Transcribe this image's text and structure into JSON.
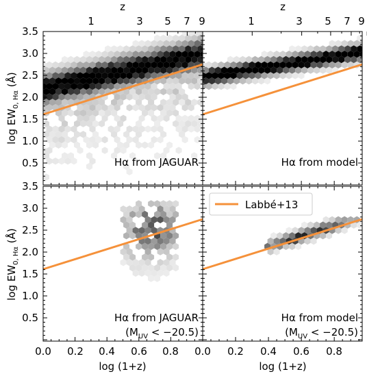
{
  "figure": {
    "top_axis_label": "z",
    "top_ticks": [
      "1",
      "3",
      "5",
      "7",
      "9"
    ],
    "fit_line_color": "#f5913a",
    "legend_label": "Labbé+13",
    "ylabel_main": "log EW",
    "ylabel_sub": "0, Hα",
    "ylabel_unit": " (Å)",
    "xlabel": "log (1+z)",
    "x_tick_labels": [
      "0.0",
      "0.2",
      "0.4",
      "0.6",
      "0.8",
      "0.0",
      "0.2",
      "0.4",
      "0.6",
      "0.8"
    ],
    "y_tick_labels_top": [
      "3.5",
      "3.0",
      "2.5",
      "2.0",
      "1.5",
      "1.0",
      "0.5"
    ],
    "y_tick_labels_bottom": [
      "3.5",
      "3.0",
      "2.5",
      "2.0",
      "1.5",
      "1.0",
      "0.5"
    ]
  },
  "chart_data": [
    {
      "type": "heatmap",
      "panel": "top-left",
      "label": "Hα from JAGUAR",
      "label_line2": "",
      "xlim": [
        0.0,
        1.0
      ],
      "ylim": [
        0.0,
        3.5
      ],
      "reference_line": {
        "name": "Labbé+13",
        "x": [
          0.0,
          1.0
        ],
        "y": [
          1.61,
          2.75
        ]
      },
      "density": {
        "ridge_at_x0": 2.18,
        "ridge_slope": 0.8,
        "scatter": 0.22,
        "lower_tail_to": 0.1
      }
    },
    {
      "type": "heatmap",
      "panel": "top-right",
      "label": "Hα from model",
      "label_line2": "",
      "xlim": [
        0.0,
        0.97
      ],
      "ylim": [
        0.0,
        3.5
      ],
      "reference_line": {
        "name": "Labbé+13",
        "x": [
          0.0,
          0.97
        ],
        "y": [
          1.61,
          2.75
        ]
      },
      "density": {
        "ridge_at_x0": 2.45,
        "ridge_slope": 0.6,
        "scatter": 0.12,
        "lower_tail_to": 2.0
      }
    },
    {
      "type": "heatmap",
      "panel": "bottom-left",
      "label": "Hα from JAGUAR",
      "label_line2": "(M",
      "label_line2_sub": "UV",
      "label_line2_rest": " < −20.5)",
      "xlim": [
        0.0,
        1.0
      ],
      "ylim": [
        0.1,
        3.5
      ],
      "reference_line": {
        "name": "Labbé+13",
        "x": [
          0.0,
          1.0
        ],
        "y": [
          1.61,
          2.75
        ]
      },
      "density": {
        "x_range": [
          0.5,
          0.85
        ],
        "y_range": [
          1.1,
          3.2
        ],
        "peak": [
          0.68,
          2.5
        ]
      }
    },
    {
      "type": "heatmap",
      "panel": "bottom-right",
      "label": "Hα from model",
      "label_line2": "(M",
      "label_line2_sub": "UV",
      "label_line2_rest": " < −20.5)",
      "xlim": [
        0.0,
        0.97
      ],
      "ylim": [
        0.1,
        3.5
      ],
      "reference_line": {
        "name": "Labbé+13",
        "x": [
          0.0,
          0.97
        ],
        "y": [
          1.61,
          2.75
        ]
      },
      "density": {
        "x_range": [
          0.38,
          0.97
        ],
        "y_range": [
          1.95,
          2.85
        ],
        "peak": [
          0.62,
          2.4
        ]
      }
    }
  ]
}
